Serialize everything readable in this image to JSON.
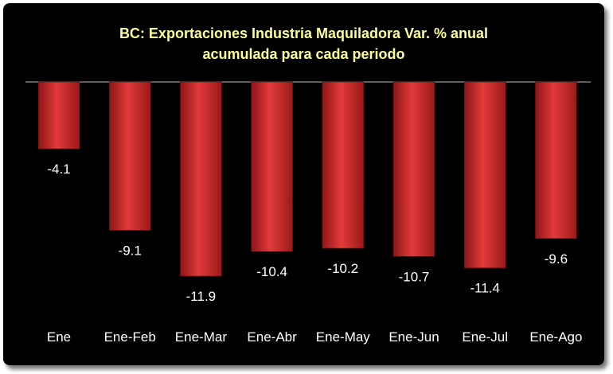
{
  "chart_data": {
    "type": "bar",
    "title_lines": [
      "BC: Exportaciones Industria Maquiladora Var. % anual",
      "acumulada para cada periodo"
    ],
    "categories": [
      "Ene",
      "Ene-Feb",
      "Ene-Mar",
      "Ene-Abr",
      "Ene-May",
      "Ene-Jun",
      "Ene-Jul",
      "Ene-Ago"
    ],
    "values": [
      -4.1,
      -9.1,
      -11.9,
      -10.4,
      -10.2,
      -10.7,
      -11.4,
      -9.6
    ],
    "value_labels": [
      "-4.1",
      "-9.1",
      "-11.9",
      "-10.4",
      "-10.2",
      "-10.7",
      "-11.4",
      "-9.6"
    ],
    "xlabel": "",
    "ylabel": "",
    "ylim": [
      -12.5,
      0
    ],
    "grid": false,
    "legend": false,
    "bar_color": "#d42a2a",
    "background": "#000000",
    "title_color": "#ffff99",
    "text_color": "#ffffff"
  }
}
